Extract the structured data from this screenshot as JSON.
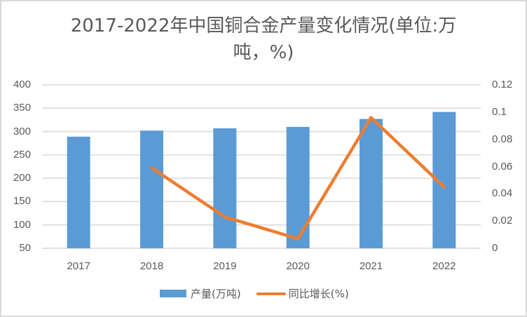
{
  "chart_data": {
    "type": "bar+line",
    "title": "2017-2022年中国铜合金产量变化情况(单位:万吨，%)",
    "title_lines": [
      "2017-2022年中国铜合金产量变化情况(单位:万",
      "吨，%)"
    ],
    "categories": [
      "2017",
      "2018",
      "2019",
      "2020",
      "2021",
      "2022"
    ],
    "series": [
      {
        "name": "产量(万吨)",
        "type": "bar",
        "axis": "left",
        "color": "#5b9bd5",
        "values": [
          289,
          302,
          307,
          310,
          327,
          342
        ]
      },
      {
        "name": "同比增长(%)",
        "type": "line",
        "axis": "right",
        "color": "#ed7d31",
        "values": [
          null,
          0.059,
          0.023,
          0.007,
          0.096,
          0.045
        ]
      }
    ],
    "y_left": {
      "ylim": [
        50,
        400
      ],
      "ticks": [
        "400",
        "350",
        "300",
        "250",
        "200",
        "150",
        "100",
        "50"
      ]
    },
    "y_right": {
      "ylim": [
        0,
        0.12
      ],
      "ticks": [
        "0.12",
        "0.1",
        "0.08",
        "0.06",
        "0.04",
        "0.02",
        "0"
      ]
    },
    "xlabel": "",
    "ylabel": "",
    "grid": true,
    "legend_position": "bottom"
  },
  "legend": {
    "bar_label": "产量(万吨)",
    "line_label": "同比增长(%)"
  },
  "colors": {
    "bar": "#5b9bd5",
    "line": "#ed7d31",
    "grid": "#d9d9d9",
    "text": "#595959"
  }
}
